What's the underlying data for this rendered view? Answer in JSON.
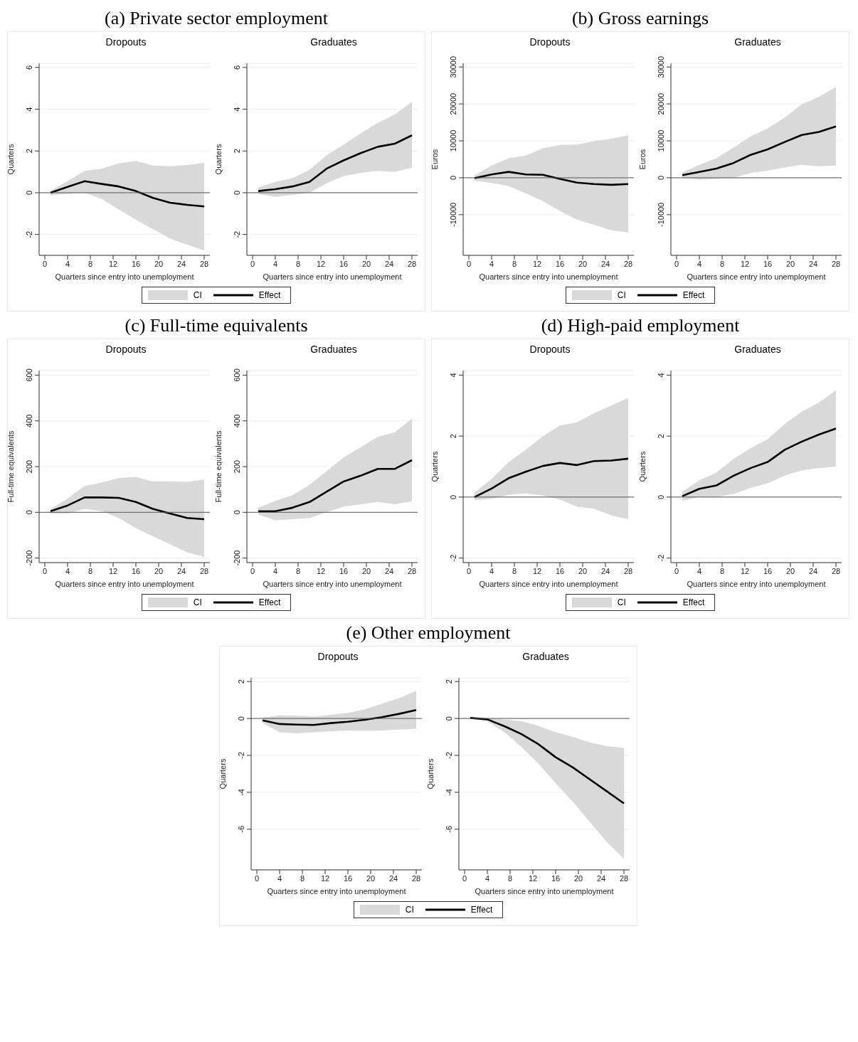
{
  "chart_data": [
    {
      "type": "line",
      "title": "Dropouts",
      "xlabel": "Quarters since entry into unemployment",
      "ylabel": "Quarters",
      "annotations": [
        "(a) Private sector employment",
        "CI"
      ],
      "legend": "bottom",
      "grid": "y",
      "x": [
        1,
        4,
        7,
        10,
        13,
        16,
        19,
        22,
        25,
        28
      ],
      "xlim": [
        -1,
        29
      ],
      "xticks": [
        0,
        4,
        8,
        12,
        16,
        20,
        24,
        28
      ],
      "ylim": [
        -3,
        6.2
      ],
      "yticks": [
        -2,
        0,
        2,
        4,
        6
      ],
      "ref_lines": [
        {
          "axis": "y",
          "value": 0,
          "color": "#555555"
        }
      ],
      "series": [
        {
          "name": "Effect",
          "color": "#000000",
          "values": [
            0,
            0.28,
            0.55,
            0.42,
            0.3,
            0.08,
            -0.25,
            -0.48,
            -0.58,
            -0.66
          ],
          "lower": [
            -0.12,
            -0.05,
            0,
            -0.3,
            -0.8,
            -1.3,
            -1.75,
            -2.2,
            -2.5,
            -2.75
          ],
          "upper": [
            0.1,
            0.55,
            1.05,
            1.15,
            1.4,
            1.52,
            1.3,
            1.27,
            1.33,
            1.43
          ]
        }
      ]
    },
    {
      "type": "line",
      "title": "Graduates",
      "xlabel": "Quarters since entry into unemployment",
      "ylabel": "Quarters",
      "grid": "y",
      "x": [
        1,
        4,
        7,
        10,
        13,
        16,
        19,
        22,
        25,
        28
      ],
      "xlim": [
        -1,
        29
      ],
      "xticks": [
        0,
        4,
        8,
        12,
        16,
        20,
        24,
        28
      ],
      "ylim": [
        -3,
        6.2
      ],
      "yticks": [
        -2,
        0,
        2,
        4,
        6
      ],
      "ref_lines": [
        {
          "axis": "y",
          "value": 0,
          "color": "#555555"
        }
      ],
      "series": [
        {
          "color": "#000000",
          "values": [
            0.08,
            0.17,
            0.3,
            0.52,
            1.15,
            1.55,
            1.9,
            2.2,
            2.35,
            2.75
          ],
          "lower": [
            -0.05,
            -0.2,
            -0.1,
            0,
            0.45,
            0.8,
            0.95,
            1.05,
            1.0,
            1.2
          ],
          "upper": [
            0.25,
            0.52,
            0.7,
            1.1,
            1.8,
            2.3,
            2.85,
            3.35,
            3.75,
            4.35
          ]
        }
      ]
    },
    {
      "type": "line",
      "title": "Dropouts",
      "xlabel": "Quarters since entry into unemployment",
      "ylabel": "Euros",
      "annotations": [
        "(b) Gross earnings",
        "CI"
      ],
      "legend": "bottom",
      "grid": "y",
      "x": [
        1,
        4,
        7,
        10,
        13,
        16,
        19,
        22,
        25,
        28
      ],
      "xlim": [
        -1,
        29
      ],
      "xticks": [
        0,
        4,
        8,
        12,
        16,
        20,
        24,
        28
      ],
      "ylim": [
        -21000,
        31000
      ],
      "yticks": [
        -10000,
        0,
        10000,
        20000,
        30000
      ],
      "ref_lines": [
        {
          "axis": "y",
          "value": 0,
          "color": "#555555"
        }
      ],
      "series": [
        {
          "name": "Effect",
          "color": "#000000",
          "values": [
            -100,
            900,
            1600,
            900,
            800,
            -300,
            -1300,
            -1700,
            -1900,
            -1700
          ],
          "lower": [
            -800,
            -1400,
            -2200,
            -4200,
            -6300,
            -9000,
            -11300,
            -12700,
            -14200,
            -14800
          ],
          "upper": [
            600,
            3300,
            5300,
            6000,
            8000,
            8900,
            9000,
            9900,
            10600,
            11500
          ]
        }
      ]
    },
    {
      "type": "line",
      "title": "Graduates",
      "xlabel": "Quarters since entry into unemployment",
      "ylabel": "Euros",
      "grid": "y",
      "x": [
        1,
        4,
        7,
        10,
        13,
        16,
        19,
        22,
        25,
        28
      ],
      "xlim": [
        -1,
        29
      ],
      "xticks": [
        0,
        4,
        8,
        12,
        16,
        20,
        24,
        28
      ],
      "ylim": [
        -21000,
        31000
      ],
      "yticks": [
        -10000,
        0,
        10000,
        20000,
        30000
      ],
      "ref_lines": [
        {
          "axis": "y",
          "value": 0,
          "color": "#555555"
        }
      ],
      "series": [
        {
          "color": "#000000",
          "values": [
            700,
            1600,
            2500,
            4000,
            6200,
            7700,
            9700,
            11600,
            12400,
            13900
          ],
          "lower": [
            0,
            -500,
            -300,
            0,
            1300,
            1900,
            2800,
            3500,
            3100,
            3300
          ],
          "upper": [
            1500,
            3500,
            5300,
            8200,
            11200,
            13400,
            16300,
            19900,
            21900,
            24600
          ]
        }
      ]
    },
    {
      "type": "line",
      "title": "Dropouts",
      "xlabel": "Quarters since entry into unemployment",
      "ylabel": "Full-time equivalents",
      "annotations": [
        "(c) Full-time equivalents",
        "CI"
      ],
      "legend": "bottom",
      "grid": "y",
      "x": [
        1,
        4,
        7,
        10,
        13,
        16,
        19,
        22,
        25,
        28
      ],
      "xlim": [
        -1,
        29
      ],
      "xticks": [
        0,
        4,
        8,
        12,
        16,
        20,
        24,
        28
      ],
      "ylim": [
        -220,
        620
      ],
      "yticks": [
        -200,
        0,
        200,
        400,
        600
      ],
      "ref_lines": [
        {
          "axis": "y",
          "value": 0,
          "color": "#555555"
        }
      ],
      "series": [
        {
          "name": "Effect",
          "color": "#000000",
          "values": [
            5,
            30,
            65,
            65,
            63,
            45,
            15,
            -5,
            -25,
            -30
          ],
          "lower": [
            -5,
            -5,
            15,
            5,
            -25,
            -70,
            -105,
            -140,
            -175,
            -195
          ],
          "upper": [
            15,
            60,
            115,
            130,
            150,
            155,
            135,
            135,
            133,
            143
          ]
        }
      ]
    },
    {
      "type": "line",
      "title": "Graduates",
      "xlabel": "Quarters since entry into unemployment",
      "ylabel": "Full-time equivalents",
      "grid": "y",
      "x": [
        1,
        4,
        7,
        10,
        13,
        16,
        19,
        22,
        25,
        28
      ],
      "xlim": [
        -1,
        29
      ],
      "xticks": [
        0,
        4,
        8,
        12,
        16,
        20,
        24,
        28
      ],
      "ylim": [
        -220,
        620
      ],
      "yticks": [
        -200,
        0,
        200,
        400,
        600
      ],
      "ref_lines": [
        {
          "axis": "y",
          "value": 0,
          "color": "#555555"
        }
      ],
      "series": [
        {
          "color": "#000000",
          "values": [
            5,
            5,
            20,
            45,
            90,
            135,
            160,
            190,
            190,
            228
          ],
          "lower": [
            -10,
            -35,
            -30,
            -25,
            0,
            25,
            35,
            45,
            35,
            48
          ],
          "upper": [
            20,
            50,
            75,
            120,
            180,
            240,
            285,
            330,
            350,
            410
          ]
        }
      ]
    },
    {
      "type": "line",
      "title": "Dropouts",
      "xlabel": "Quarters since entry into unemployment",
      "ylabel": "Quarters",
      "annotations": [
        "(d) High-paid employment",
        "CI"
      ],
      "legend": "bottom",
      "grid": "y",
      "x": [
        1,
        4,
        7,
        10,
        13,
        16,
        19,
        22,
        25,
        28
      ],
      "xlim": [
        -1,
        29
      ],
      "xticks": [
        0,
        4,
        8,
        12,
        16,
        20,
        24,
        28
      ],
      "ylim": [
        -2.15,
        4.15
      ],
      "yticks": [
        -2,
        0,
        2,
        4
      ],
      "ref_lines": [
        {
          "axis": "y",
          "value": 0,
          "color": "#555555"
        }
      ],
      "series": [
        {
          "name": "Effect",
          "color": "#000000",
          "values": [
            0,
            0.28,
            0.62,
            0.83,
            1.02,
            1.12,
            1.05,
            1.18,
            1.2,
            1.26
          ],
          "lower": [
            -0.1,
            -0.05,
            0.07,
            0.12,
            0.05,
            -0.08,
            -0.32,
            -0.38,
            -0.6,
            -0.73
          ],
          "upper": [
            0.15,
            0.6,
            1.15,
            1.55,
            2.0,
            2.35,
            2.45,
            2.75,
            3.0,
            3.25
          ]
        }
      ]
    },
    {
      "type": "line",
      "title": "Graduates",
      "xlabel": "Quarters since entry into unemployment",
      "ylabel": "Quarters",
      "grid": "y",
      "x": [
        1,
        4,
        7,
        10,
        13,
        16,
        19,
        22,
        25,
        28
      ],
      "xlim": [
        -1,
        29
      ],
      "xticks": [
        0,
        4,
        8,
        12,
        16,
        20,
        24,
        28
      ],
      "ylim": [
        -2.15,
        4.15
      ],
      "yticks": [
        -2,
        0,
        2,
        4
      ],
      "ref_lines": [
        {
          "axis": "y",
          "value": 0,
          "color": "#555555"
        }
      ],
      "series": [
        {
          "color": "#000000",
          "values": [
            0.03,
            0.27,
            0.38,
            0.7,
            0.95,
            1.15,
            1.55,
            1.82,
            2.05,
            2.25
          ],
          "lower": [
            -0.12,
            0,
            0,
            0.1,
            0.3,
            0.45,
            0.7,
            0.88,
            0.95,
            1.0
          ],
          "upper": [
            0.18,
            0.55,
            0.8,
            1.25,
            1.6,
            1.9,
            2.4,
            2.8,
            3.1,
            3.5
          ]
        }
      ]
    },
    {
      "type": "line",
      "title": "Dropouts",
      "xlabel": "Quarters since entry into unemployment",
      "ylabel": "Quarters",
      "annotations": [
        "(e) Other employment",
        "CI"
      ],
      "legend": "bottom",
      "grid": "y",
      "x": [
        1,
        4,
        7,
        10,
        13,
        16,
        19,
        22,
        25,
        28
      ],
      "xlim": [
        -1,
        29
      ],
      "xticks": [
        0,
        4,
        8,
        12,
        16,
        20,
        24,
        28
      ],
      "ylim": [
        -8.2,
        2.2
      ],
      "yticks": [
        -6,
        -4,
        -2,
        0,
        2
      ],
      "ref_lines": [
        {
          "axis": "y",
          "value": 0,
          "color": "#555555"
        }
      ],
      "series": [
        {
          "name": "Effect",
          "color": "#000000",
          "values": [
            -0.1,
            -0.3,
            -0.33,
            -0.35,
            -0.25,
            -0.18,
            -0.07,
            0.07,
            0.25,
            0.46
          ],
          "lower": [
            -0.25,
            -0.75,
            -0.8,
            -0.75,
            -0.7,
            -0.65,
            -0.65,
            -0.65,
            -0.6,
            -0.55
          ],
          "upper": [
            0.05,
            0.17,
            0.15,
            0.1,
            0.2,
            0.3,
            0.5,
            0.8,
            1.1,
            1.5
          ]
        }
      ]
    },
    {
      "type": "line",
      "title": "Graduates",
      "xlabel": "Quarters since entry into unemployment",
      "ylabel": "Quarters",
      "grid": "y",
      "x": [
        1,
        4,
        7,
        10,
        13,
        16,
        19,
        22,
        25,
        28
      ],
      "xlim": [
        -1,
        29
      ],
      "xticks": [
        0,
        4,
        8,
        12,
        16,
        20,
        24,
        28
      ],
      "ylim": [
        -8.2,
        2.2
      ],
      "yticks": [
        -6,
        -4,
        -2,
        0,
        2
      ],
      "ref_lines": [
        {
          "axis": "y",
          "value": 0,
          "color": "#555555"
        }
      ],
      "series": [
        {
          "color": "#000000",
          "values": [
            0.03,
            -0.05,
            -0.42,
            -0.85,
            -1.4,
            -2.1,
            -2.65,
            -3.3,
            -3.95,
            -4.6
          ],
          "lower": [
            0,
            -0.15,
            -0.75,
            -1.55,
            -2.45,
            -3.5,
            -4.5,
            -5.6,
            -6.7,
            -7.6
          ],
          "upper": [
            0.05,
            0,
            -0.05,
            -0.15,
            -0.4,
            -0.75,
            -1.0,
            -1.3,
            -1.5,
            -1.6
          ]
        }
      ]
    }
  ]
}
